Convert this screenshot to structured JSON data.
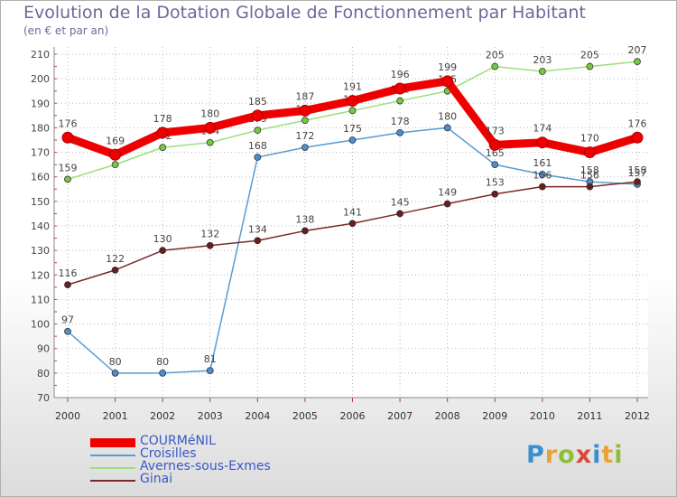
{
  "header": {
    "title": "Evolution de la Dotation Globale de Fonctionnement par Habitant",
    "subtitle": "(en € et par an)"
  },
  "brand": {
    "logo_letters": [
      "P",
      "r",
      "o",
      "x",
      "i",
      "t",
      "i"
    ],
    "logo_colors": [
      "#3a8fd0",
      "#e8a23a",
      "#8fbf3a",
      "#d84a3a",
      "#3a8fd0",
      "#e8a23a",
      "#8fbf3a"
    ]
  },
  "chart_data": {
    "type": "line",
    "title": "Evolution de la Dotation Globale de Fonctionnement par Habitant",
    "subtitle": "(en € et par an)",
    "xlabel": "",
    "ylabel": "",
    "x": [
      "2000",
      "2001",
      "2002",
      "2003",
      "2004",
      "2005",
      "2006",
      "2007",
      "2008",
      "2009",
      "2010",
      "2011",
      "2012"
    ],
    "ylim": [
      70,
      210
    ],
    "yticks": [
      70,
      80,
      90,
      100,
      110,
      120,
      130,
      140,
      150,
      160,
      170,
      180,
      190,
      200,
      210
    ],
    "grid": true,
    "legend_position": "bottom-left",
    "series": [
      {
        "name": "Croisilles",
        "color": "#5b9bd0",
        "marker": "#4a8fcf",
        "thick": false,
        "values": [
          97,
          80,
          80,
          81,
          168,
          172,
          175,
          178,
          180,
          165,
          161,
          158,
          157
        ]
      },
      {
        "name": "Avernes-sous-Exmes",
        "color": "#9be07a",
        "marker": "#76c943",
        "thick": false,
        "values": [
          159,
          165,
          172,
          174,
          179,
          183,
          187,
          191,
          195,
          205,
          203,
          205,
          207
        ]
      },
      {
        "name": "Ginai",
        "color": "#7a2a2a",
        "marker": "#6b1c1c",
        "thick": false,
        "values": [
          116,
          122,
          130,
          132,
          134,
          138,
          141,
          145,
          149,
          153,
          156,
          156,
          158
        ]
      },
      {
        "name": "COURMéNIL",
        "color": "#ee0000",
        "marker": "#ee0000",
        "thick": true,
        "values": [
          176,
          169,
          178,
          180,
          185,
          187,
          191,
          196,
          199,
          173,
          174,
          170,
          176
        ]
      }
    ],
    "legend_order": [
      "COURMéNIL",
      "Croisilles",
      "Avernes-sous-Exmes",
      "Ginai"
    ]
  }
}
